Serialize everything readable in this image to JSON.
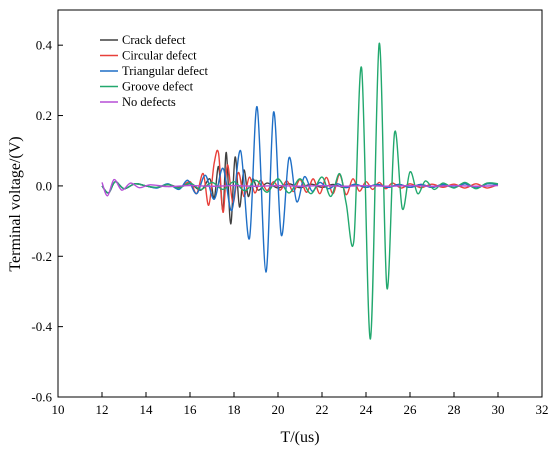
{
  "chart_data": {
    "type": "line",
    "title": "",
    "xlabel": "T/(us)",
    "ylabel": "Terminal voltage/(V)",
    "xlim": [
      10,
      32
    ],
    "ylim": [
      -0.6,
      0.5
    ],
    "x_ticks": [
      10,
      12,
      14,
      16,
      18,
      20,
      22,
      24,
      26,
      28,
      30,
      32
    ],
    "y_ticks": [
      -0.6,
      -0.4,
      -0.2,
      0.0,
      0.2,
      0.4
    ],
    "x_tick_labels": [
      "10",
      "12",
      "14",
      "16",
      "18",
      "20",
      "22",
      "24",
      "26",
      "28",
      "30",
      "32"
    ],
    "y_tick_labels": [
      "-0.6",
      "-0.4",
      "-0.2",
      "0.0",
      "0.2",
      "0.4"
    ],
    "grid": false,
    "legend_position": "top-left",
    "series": [
      {
        "name": "Crack defect",
        "color": "#404040",
        "points": [
          [
            12.0,
            0.0
          ],
          [
            12.3,
            -0.02
          ],
          [
            12.6,
            0.012
          ],
          [
            13.0,
            -0.008
          ],
          [
            13.5,
            0.006
          ],
          [
            14.0,
            0.0
          ],
          [
            14.5,
            -0.005
          ],
          [
            15.0,
            0.004
          ],
          [
            15.5,
            -0.004
          ],
          [
            16.0,
            0.006
          ],
          [
            16.5,
            -0.012
          ],
          [
            16.9,
            0.02
          ],
          [
            17.1,
            -0.035
          ],
          [
            17.3,
            0.055
          ],
          [
            17.5,
            -0.07
          ],
          [
            17.65,
            0.095
          ],
          [
            17.85,
            -0.108
          ],
          [
            18.05,
            0.082
          ],
          [
            18.25,
            -0.06
          ],
          [
            18.45,
            0.045
          ],
          [
            18.65,
            -0.03
          ],
          [
            18.85,
            0.02
          ],
          [
            19.1,
            -0.012
          ],
          [
            19.5,
            0.008
          ],
          [
            20.0,
            -0.006
          ],
          [
            20.5,
            0.006
          ],
          [
            21.0,
            -0.005
          ],
          [
            21.5,
            0.005
          ],
          [
            22.0,
            -0.004
          ],
          [
            22.5,
            0.004
          ],
          [
            23.0,
            -0.004
          ],
          [
            23.5,
            0.004
          ],
          [
            24.0,
            -0.004
          ],
          [
            24.5,
            0.004
          ],
          [
            25.0,
            -0.004
          ],
          [
            25.5,
            0.004
          ],
          [
            26.0,
            -0.004
          ],
          [
            26.5,
            0.004
          ],
          [
            27.0,
            -0.004
          ],
          [
            27.5,
            0.004
          ],
          [
            28.0,
            -0.004
          ],
          [
            28.5,
            0.006
          ],
          [
            29.0,
            -0.006
          ],
          [
            29.5,
            0.006
          ],
          [
            30.0,
            0.004
          ]
        ]
      },
      {
        "name": "Circular defect",
        "color": "#e8403a",
        "points": [
          [
            12.0,
            0.0
          ],
          [
            12.3,
            -0.02
          ],
          [
            12.6,
            0.012
          ],
          [
            13.0,
            -0.008
          ],
          [
            13.5,
            0.006
          ],
          [
            14.0,
            0.0
          ],
          [
            14.5,
            -0.005
          ],
          [
            15.0,
            0.004
          ],
          [
            15.5,
            -0.006
          ],
          [
            16.0,
            0.012
          ],
          [
            16.3,
            -0.022
          ],
          [
            16.6,
            0.035
          ],
          [
            16.85,
            -0.055
          ],
          [
            17.1,
            0.065
          ],
          [
            17.3,
            0.092
          ],
          [
            17.5,
            -0.075
          ],
          [
            17.7,
            0.06
          ],
          [
            17.95,
            -0.048
          ],
          [
            18.2,
            0.038
          ],
          [
            18.45,
            -0.03
          ],
          [
            18.7,
            0.025
          ],
          [
            18.95,
            -0.02
          ],
          [
            19.2,
            0.016
          ],
          [
            19.5,
            -0.013
          ],
          [
            19.8,
            0.012
          ],
          [
            20.1,
            -0.012
          ],
          [
            20.4,
            0.014
          ],
          [
            20.7,
            -0.016
          ],
          [
            21.0,
            0.018
          ],
          [
            21.3,
            -0.018
          ],
          [
            21.6,
            0.02
          ],
          [
            21.9,
            -0.022
          ],
          [
            22.2,
            0.024
          ],
          [
            22.5,
            -0.022
          ],
          [
            22.8,
            0.032
          ],
          [
            23.1,
            -0.025
          ],
          [
            23.4,
            0.02
          ],
          [
            23.7,
            -0.015
          ],
          [
            24.0,
            0.012
          ],
          [
            24.3,
            -0.01
          ],
          [
            24.6,
            0.01
          ],
          [
            24.9,
            -0.008
          ],
          [
            25.2,
            0.008
          ],
          [
            25.6,
            -0.006
          ],
          [
            26.0,
            0.006
          ],
          [
            26.5,
            -0.005
          ],
          [
            27.0,
            0.005
          ],
          [
            27.5,
            -0.004
          ],
          [
            28.0,
            0.005
          ],
          [
            28.5,
            -0.006
          ],
          [
            29.0,
            0.006
          ],
          [
            29.5,
            -0.006
          ],
          [
            30.0,
            0.004
          ]
        ]
      },
      {
        "name": "Triangular defect",
        "color": "#1f6fc6",
        "points": [
          [
            12.0,
            0.0
          ],
          [
            12.3,
            -0.02
          ],
          [
            12.6,
            0.012
          ],
          [
            13.0,
            -0.008
          ],
          [
            13.5,
            0.006
          ],
          [
            14.0,
            0.0
          ],
          [
            14.5,
            -0.006
          ],
          [
            15.0,
            0.006
          ],
          [
            15.5,
            -0.01
          ],
          [
            15.9,
            0.016
          ],
          [
            16.3,
            -0.022
          ],
          [
            16.7,
            0.03
          ],
          [
            17.1,
            -0.038
          ],
          [
            17.5,
            0.05
          ],
          [
            17.9,
            -0.07
          ],
          [
            18.3,
            0.1
          ],
          [
            18.7,
            -0.15
          ],
          [
            19.05,
            0.225
          ],
          [
            19.45,
            -0.245
          ],
          [
            19.8,
            0.21
          ],
          [
            20.15,
            -0.14
          ],
          [
            20.5,
            0.08
          ],
          [
            20.85,
            -0.045
          ],
          [
            21.2,
            0.026
          ],
          [
            21.55,
            -0.015
          ],
          [
            21.9,
            0.01
          ],
          [
            22.3,
            -0.008
          ],
          [
            22.7,
            0.006
          ],
          [
            23.1,
            -0.005
          ],
          [
            23.5,
            0.005
          ],
          [
            24.0,
            -0.004
          ],
          [
            24.5,
            0.004
          ],
          [
            25.0,
            -0.004
          ],
          [
            25.5,
            0.004
          ],
          [
            26.0,
            -0.004
          ],
          [
            26.5,
            0.004
          ],
          [
            27.0,
            -0.004
          ],
          [
            27.5,
            0.004
          ],
          [
            28.0,
            -0.004
          ],
          [
            28.5,
            0.006
          ],
          [
            29.0,
            -0.006
          ],
          [
            29.5,
            0.006
          ],
          [
            30.0,
            0.004
          ]
        ]
      },
      {
        "name": "Groove defect",
        "color": "#22a86e",
        "points": [
          [
            12.0,
            0.0
          ],
          [
            12.3,
            -0.02
          ],
          [
            12.6,
            0.012
          ],
          [
            13.0,
            -0.008
          ],
          [
            13.5,
            0.006
          ],
          [
            14.0,
            0.0
          ],
          [
            14.5,
            -0.004
          ],
          [
            15.0,
            0.004
          ],
          [
            15.5,
            -0.006
          ],
          [
            16.0,
            0.008
          ],
          [
            16.5,
            -0.01
          ],
          [
            17.0,
            0.01
          ],
          [
            17.5,
            -0.01
          ],
          [
            18.0,
            0.012
          ],
          [
            18.5,
            -0.014
          ],
          [
            19.0,
            0.016
          ],
          [
            19.5,
            -0.018
          ],
          [
            20.0,
            0.02
          ],
          [
            20.5,
            -0.02
          ],
          [
            21.0,
            0.02
          ],
          [
            21.5,
            -0.022
          ],
          [
            22.0,
            0.025
          ],
          [
            22.4,
            -0.03
          ],
          [
            22.8,
            0.035
          ],
          [
            23.1,
            -0.05
          ],
          [
            23.45,
            -0.155
          ],
          [
            23.8,
            0.335
          ],
          [
            24.2,
            -0.435
          ],
          [
            24.6,
            0.405
          ],
          [
            24.95,
            -0.29
          ],
          [
            25.3,
            0.152
          ],
          [
            25.65,
            -0.065
          ],
          [
            26.0,
            0.04
          ],
          [
            26.35,
            -0.022
          ],
          [
            26.7,
            0.014
          ],
          [
            27.1,
            -0.01
          ],
          [
            27.5,
            0.008
          ],
          [
            28.0,
            -0.006
          ],
          [
            28.5,
            0.01
          ],
          [
            29.0,
            -0.008
          ],
          [
            29.5,
            0.008
          ],
          [
            30.0,
            0.006
          ]
        ]
      },
      {
        "name": "No defects",
        "color": "#b64fd6",
        "points": [
          [
            12.0,
            0.01
          ],
          [
            12.25,
            -0.028
          ],
          [
            12.55,
            0.018
          ],
          [
            12.9,
            -0.012
          ],
          [
            13.3,
            0.008
          ],
          [
            13.7,
            -0.005
          ],
          [
            14.2,
            0.003
          ],
          [
            15.0,
            -0.002
          ],
          [
            16.0,
            0.001
          ],
          [
            17.0,
            -0.001
          ],
          [
            18.0,
            0.001
          ],
          [
            19.0,
            -0.001
          ],
          [
            20.0,
            0.001
          ],
          [
            21.0,
            -0.001
          ],
          [
            22.0,
            0.001
          ],
          [
            23.0,
            -0.001
          ],
          [
            24.0,
            0.001
          ],
          [
            25.0,
            -0.001
          ],
          [
            26.0,
            0.001
          ],
          [
            27.0,
            -0.001
          ],
          [
            28.0,
            0.001
          ],
          [
            29.0,
            -0.001
          ],
          [
            30.0,
            0.001
          ]
        ]
      }
    ]
  }
}
